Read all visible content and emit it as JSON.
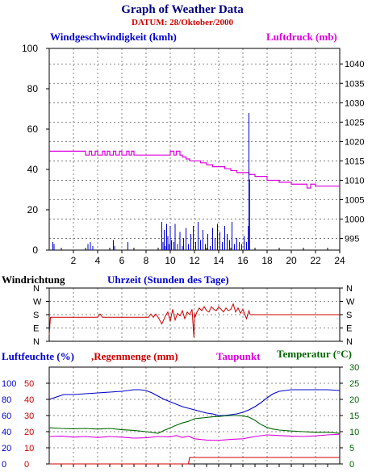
{
  "title": "Graph of Weather Data",
  "date_label": "DATUM: 28/Oktober/2000",
  "colors": {
    "wind": "#0000cc",
    "pressure": "#dd00dd",
    "direction": "#cc0000",
    "humidity": "#0000cc",
    "rain": "#cc0000",
    "dewpoint": "#dd00dd",
    "temperature": "#006600",
    "title": "#000080",
    "date": "#cc0000"
  },
  "chart_data": [
    {
      "type": "line",
      "title": "Graph of Weather Data",
      "xlabel": "Uhrzeit (Stunden des Tage)",
      "xlim": [
        0,
        24
      ],
      "xticks": [
        2,
        4,
        6,
        8,
        10,
        12,
        14,
        16,
        18,
        20,
        22,
        24
      ],
      "grid": true,
      "left_axis": {
        "label": "Windgeschwindigkeit (kmh)",
        "ylim": [
          0,
          100
        ],
        "ticks": [
          0,
          20,
          40,
          60,
          80,
          100
        ]
      },
      "right_axis": {
        "label": "Luftdruck (mb)",
        "ylim": [
          992,
          1044
        ],
        "ticks": [
          995,
          1000,
          1005,
          1010,
          1015,
          1020,
          1025,
          1030,
          1035,
          1040
        ]
      },
      "series": [
        {
          "name": "Windgeschwindigkeit (kmh)",
          "axis": "left",
          "style": "spikes",
          "x": [
            0.3,
            0.4,
            3.2,
            3.4,
            3.6,
            5.3,
            5.4,
            6.5,
            9.3,
            9.4,
            9.5,
            9.6,
            9.7,
            9.8,
            9.9,
            10.0,
            10.1,
            10.3,
            10.4,
            10.6,
            10.8,
            11.0,
            11.1,
            11.3,
            11.5,
            11.7,
            11.9,
            12.1,
            12.3,
            12.5,
            12.7,
            12.9,
            13.1,
            13.3,
            13.5,
            13.7,
            13.9,
            14.1,
            14.3,
            14.5,
            14.7,
            14.9,
            15.1,
            15.3,
            15.5,
            15.7,
            15.9,
            16.1,
            16.3,
            16.45,
            16.5,
            16.55,
            16.6
          ],
          "y": [
            4,
            3,
            3,
            4,
            2,
            5,
            2,
            4,
            14,
            4,
            10,
            2,
            13,
            7,
            3,
            12,
            5,
            4,
            13,
            3,
            9,
            2,
            6,
            11,
            3,
            8,
            12,
            4,
            14,
            5,
            10,
            3,
            8,
            2,
            11,
            6,
            13,
            9,
            4,
            12,
            8,
            5,
            14,
            3,
            6,
            4,
            3,
            7,
            4,
            12,
            68,
            35,
            0
          ]
        },
        {
          "name": "Luftdruck (mb)",
          "axis": "right",
          "style": "step",
          "x": [
            0,
            3.0,
            3.3,
            3.5,
            3.8,
            4.0,
            4.4,
            4.6,
            4.8,
            5.0,
            5.3,
            5.5,
            5.8,
            6.0,
            6.4,
            6.6,
            6.8,
            7.0,
            10.0,
            10.3,
            10.5,
            10.8,
            11.0,
            11.3,
            11.6,
            12.0,
            12.5,
            13.0,
            13.5,
            14.0,
            14.5,
            15.0,
            15.5,
            16.0,
            16.5,
            17.0,
            18.0,
            19.0,
            20.0,
            21.0,
            21.3,
            21.6,
            22.0,
            24.0
          ],
          "y": [
            1017.5,
            1016.5,
            1017.5,
            1016.5,
            1017.5,
            1016.5,
            1017.5,
            1016.5,
            1017.5,
            1016.5,
            1017.5,
            1016.5,
            1017.5,
            1016.5,
            1017.5,
            1016.5,
            1017.5,
            1016.5,
            1017.5,
            1016.5,
            1017.5,
            1016.5,
            1016.0,
            1015.5,
            1015.0,
            1015.0,
            1014.5,
            1014.0,
            1013.5,
            1013.5,
            1013.0,
            1012.5,
            1012.0,
            1012.0,
            1011.5,
            1011.0,
            1010.0,
            1009.5,
            1009.0,
            1009.0,
            1008.0,
            1009.0,
            1008.5,
            1008.5
          ]
        }
      ]
    },
    {
      "type": "line",
      "title": "Windrichtung",
      "xlim": [
        0,
        24
      ],
      "y_categories": [
        "N",
        "W",
        "S",
        "E",
        "N"
      ],
      "grid": true,
      "series": [
        {
          "name": "Windrichtung",
          "x": [
            0,
            0.1,
            0.2,
            4.0,
            4.2,
            4.4,
            4.6,
            8.2,
            8.4,
            8.6,
            8.8,
            9.0,
            9.3,
            9.6,
            9.8,
            10.0,
            10.2,
            10.4,
            10.6,
            10.8,
            11.0,
            11.2,
            11.4,
            11.6,
            11.8,
            11.95,
            12.0,
            12.05,
            12.2,
            12.4,
            12.6,
            12.8,
            13.0,
            13.2,
            13.4,
            13.6,
            13.8,
            14.0,
            14.2,
            14.4,
            14.6,
            14.8,
            15.0,
            15.2,
            15.4,
            15.6,
            15.8,
            16.0,
            16.3,
            16.5,
            16.6,
            24.0
          ],
          "y": [
            0.5,
            1.8,
            1.8,
            1.8,
            2.05,
            1.8,
            1.8,
            1.8,
            2.05,
            1.8,
            2.05,
            1.8,
            1.3,
            1.9,
            2.2,
            1.5,
            2.4,
            1.6,
            2.1,
            1.9,
            2.3,
            1.7,
            2.2,
            2.0,
            2.4,
            0.3,
            2.1,
            1.8,
            2.2,
            2.5,
            2.3,
            2.6,
            2.3,
            2.2,
            2.6,
            2.4,
            2.3,
            2.6,
            2.4,
            2.2,
            2.5,
            2.3,
            2.4,
            2.8,
            2.2,
            2.5,
            2.1,
            2.4,
            1.7,
            2.3,
            2.0,
            2.0
          ]
        }
      ]
    },
    {
      "type": "line",
      "title": "Temperatur (°C)",
      "xlim": [
        0,
        24
      ],
      "grid": true,
      "left_axis": {
        "labels": [
          {
            "humidity": "100",
            "rain": "50"
          },
          {
            "humidity": "80",
            "rain": "40"
          },
          {
            "humidity": "60",
            "rain": "30"
          },
          {
            "humidity": "40",
            "rain": "20"
          },
          {
            "humidity": "20",
            "rain": "10"
          },
          {
            "humidity": "0",
            "rain": "0"
          }
        ]
      },
      "right_axis": {
        "ylim": [
          0,
          30
        ],
        "ticks": [
          0,
          5,
          10,
          15,
          20,
          25,
          30
        ]
      },
      "series": [
        {
          "name": "Luftfeuchte (%)",
          "scale": "humidity",
          "ylim": [
            0,
            120
          ],
          "x": [
            0,
            0.4,
            0.8,
            1.2,
            2,
            3,
            4,
            5,
            6,
            7,
            7.5,
            8,
            8.5,
            9,
            9.5,
            10,
            10.5,
            11,
            11.5,
            12,
            12.5,
            13,
            13.5,
            14,
            14.5,
            15,
            15.5,
            16,
            16.5,
            17,
            17.5,
            18,
            18.5,
            19,
            19.5,
            20,
            21,
            22,
            23,
            24
          ],
          "y": [
            80,
            82,
            84,
            86,
            86,
            87,
            88,
            89,
            90,
            92,
            92,
            91,
            88,
            84,
            80,
            77,
            74,
            71,
            69,
            67,
            65,
            63,
            62,
            60,
            60,
            61,
            62,
            64,
            67,
            71,
            76,
            82,
            87,
            90,
            91,
            92,
            92,
            92,
            92,
            91
          ]
        },
        {
          "name": "Regenmenge (mm)",
          "scale": "rain",
          "ylim": [
            0,
            60
          ],
          "x": [
            0,
            11.5,
            11.6,
            24
          ],
          "y": [
            0,
            0,
            4,
            4
          ]
        },
        {
          "name": "Taupunkt",
          "scale": "temperature",
          "ylim": [
            0,
            30
          ],
          "x": [
            0,
            1,
            2,
            3,
            4,
            5,
            6,
            7,
            8,
            9,
            10,
            10.5,
            11,
            11.5,
            12,
            13,
            14,
            15,
            16,
            17,
            18,
            19,
            20,
            21,
            22,
            23,
            24
          ],
          "y": [
            8.5,
            8.6,
            8.3,
            8.5,
            8.2,
            8.5,
            8.3,
            8.0,
            8.1,
            8.5,
            8.4,
            8.8,
            8.2,
            8.6,
            7.8,
            7.4,
            7.3,
            7.6,
            7.8,
            8.5,
            9.0,
            8.8,
            8.6,
            8.5,
            8.7,
            9.0,
            9.2
          ]
        },
        {
          "name": "Temperatur (°C)",
          "scale": "temperature",
          "ylim": [
            0,
            30
          ],
          "x": [
            0,
            1,
            2,
            3,
            4,
            5,
            6,
            7,
            8,
            9,
            9.5,
            10,
            10.5,
            11,
            11.5,
            12,
            12.5,
            13,
            13.5,
            14,
            14.5,
            15,
            15.5,
            16,
            16.5,
            17,
            17.5,
            18,
            18.5,
            19,
            20,
            21,
            22,
            23,
            24
          ],
          "y": [
            11.2,
            11.0,
            10.9,
            11.0,
            10.8,
            11.0,
            10.6,
            10.4,
            10.0,
            9.5,
            10.4,
            11.2,
            12.0,
            12.7,
            13.2,
            14.0,
            14.2,
            14.4,
            14.6,
            14.7,
            14.9,
            15.0,
            15.0,
            14.9,
            14.5,
            13.5,
            12.2,
            11.3,
            10.8,
            10.5,
            10.2,
            10.0,
            9.8,
            9.8,
            9.5
          ]
        }
      ]
    }
  ]
}
